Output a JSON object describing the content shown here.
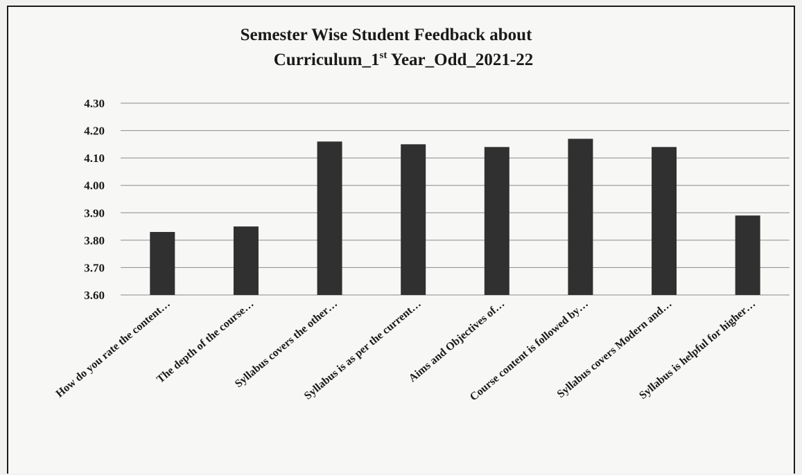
{
  "chart_data": {
    "type": "bar",
    "title": {
      "line1": "Semester Wise Student Feedback about",
      "line2_prefix": "Curriculum_1",
      "line2_sup": "st",
      "line2_suffix": " Year_Odd_2021-22"
    },
    "xlabel": "",
    "ylabel": "",
    "ylim": [
      3.6,
      4.3
    ],
    "yticks": [
      "3.60",
      "3.70",
      "3.80",
      "3.90",
      "4.00",
      "4.10",
      "4.20",
      "4.30"
    ],
    "grid": true,
    "legend": "none",
    "bar_color": "#303030",
    "categories": [
      "How do you rate the content…",
      "The depth of the course…",
      "Syllabus covers the other…",
      "Syllabus is as per the current…",
      "Aims and Objectives of…",
      "Course content is followed by…",
      "Syllabus covers Modern and…",
      "Syllabus is helpful for higher…"
    ],
    "values": [
      3.83,
      3.85,
      4.16,
      4.15,
      4.14,
      4.17,
      4.14,
      3.89
    ]
  }
}
